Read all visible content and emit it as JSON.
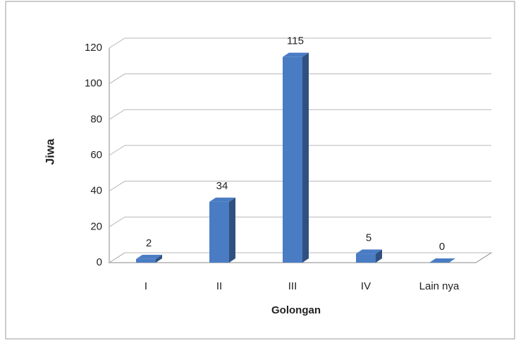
{
  "chart_data": {
    "type": "bar",
    "categories": [
      "I",
      "II",
      "III",
      "IV",
      "Lain nya"
    ],
    "values": [
      2,
      34,
      115,
      5,
      0
    ],
    "color": "#4a7cc4",
    "ylim": [
      0,
      120
    ],
    "yticks": [
      0,
      20,
      40,
      60,
      80,
      100,
      120
    ],
    "grid": true,
    "y_label": "Jiwa",
    "x_label": "Golongan"
  }
}
